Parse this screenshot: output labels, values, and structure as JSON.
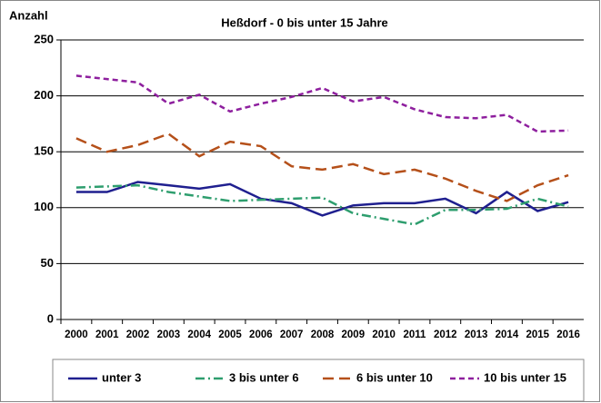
{
  "chart_data": {
    "type": "line",
    "title": "Heßdorf - 0 bis unter 15 Jahre",
    "y_label": "Anzahl",
    "categories": [
      "2000",
      "2001",
      "2002",
      "2003",
      "2004",
      "2005",
      "2006",
      "2007",
      "2008",
      "2009",
      "2010",
      "2011",
      "2012",
      "2013",
      "2014",
      "2015",
      "2016"
    ],
    "series": [
      {
        "name": "unter 3",
        "color": "#1f1f8f",
        "style": "solid",
        "values": [
          114,
          114,
          123,
          120,
          117,
          121,
          108,
          104,
          93,
          102,
          104,
          104,
          108,
          95,
          114,
          97,
          105
        ]
      },
      {
        "name": "3 bis unter 6",
        "color": "#2e9e6e",
        "style": "dashdot",
        "values": [
          118,
          119,
          120,
          114,
          110,
          106,
          107,
          108,
          109,
          95,
          90,
          85,
          98,
          98,
          99,
          108,
          101
        ]
      },
      {
        "name": "6 bis unter 10",
        "color": "#b5501a",
        "style": "dashed",
        "values": [
          162,
          150,
          156,
          166,
          146,
          159,
          155,
          137,
          134,
          139,
          130,
          134,
          126,
          115,
          106,
          120,
          129
        ]
      },
      {
        "name": "10 bis unter 15",
        "color": "#8e1f9e",
        "style": "shortdash",
        "values": [
          218,
          215,
          212,
          193,
          201,
          186,
          193,
          199,
          207,
          195,
          199,
          188,
          181,
          180,
          183,
          168,
          169
        ]
      }
    ],
    "ylim": [
      0,
      250
    ],
    "yticks": [
      0,
      50,
      100,
      150,
      200,
      250
    ],
    "grid": true,
    "legend": "bottom"
  }
}
